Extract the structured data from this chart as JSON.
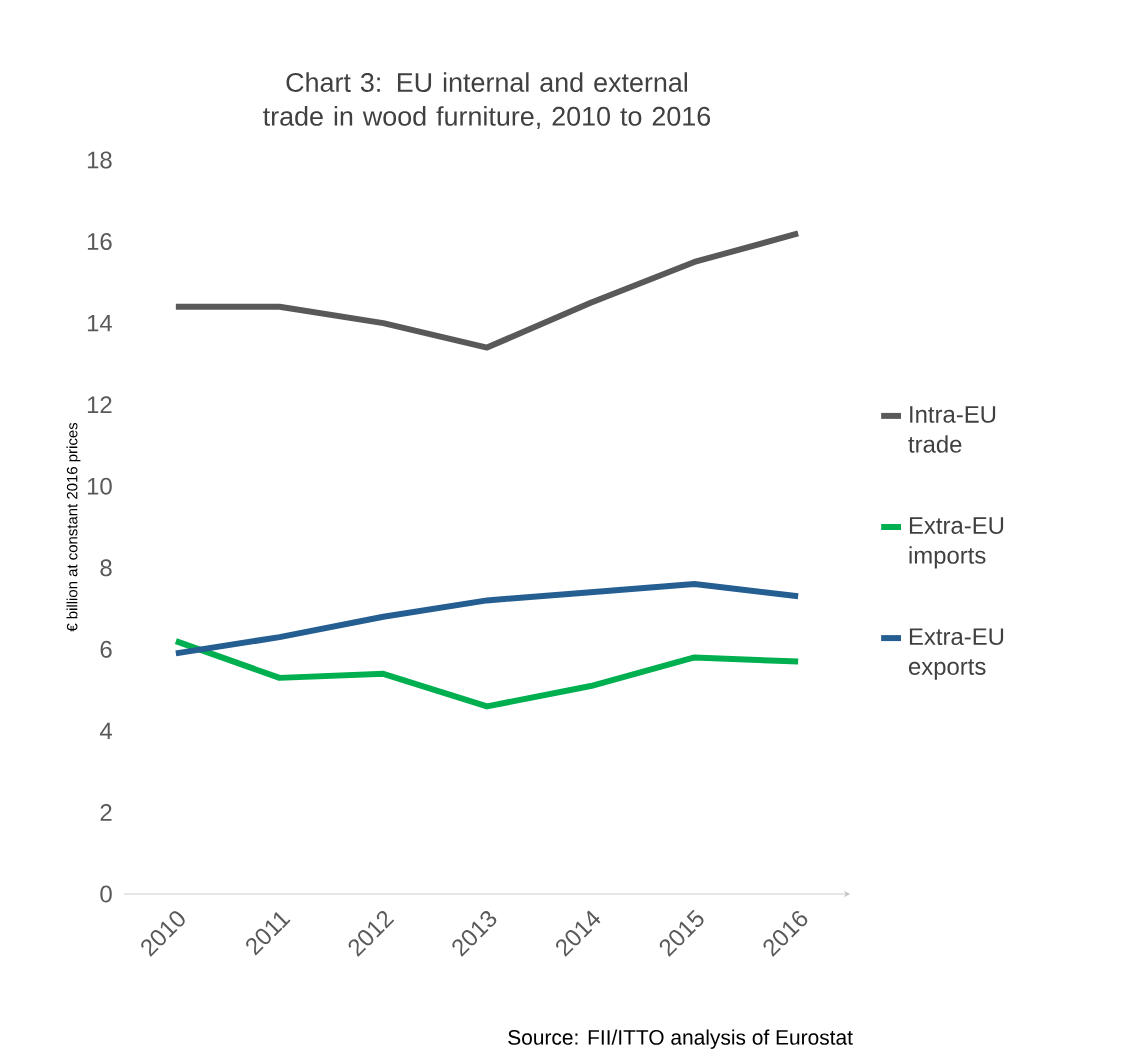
{
  "chart_data": {
    "type": "line",
    "title": "Chart 3: EU internal and external trade in wood furniture, 2010 to 2016",
    "ylabel": "€ billion at constant 2016 prices",
    "categories": [
      "2010",
      "2011",
      "2012",
      "2013",
      "2014",
      "2015",
      "2016"
    ],
    "series": [
      {
        "name": "Intra-EU trade",
        "color": "#595959",
        "values": [
          14.4,
          14.4,
          14.0,
          13.4,
          14.5,
          15.5,
          16.2
        ]
      },
      {
        "name": "Extra-EU imports",
        "color": "#00b050",
        "values": [
          6.2,
          5.3,
          5.4,
          4.6,
          5.1,
          5.8,
          5.7
        ]
      },
      {
        "name": "Extra-EU exports",
        "color": "#255e91",
        "values": [
          5.9,
          6.3,
          6.8,
          7.2,
          7.4,
          7.6,
          7.3
        ]
      }
    ],
    "ylim": [
      0,
      18
    ],
    "yticks": [
      0,
      2,
      4,
      6,
      8,
      10,
      12,
      14,
      16,
      18
    ],
    "legend": "right",
    "marker": "none",
    "line_style": "solid",
    "annotations": [
      "Source: FII/ITTO analysis of Eurostat"
    ]
  }
}
